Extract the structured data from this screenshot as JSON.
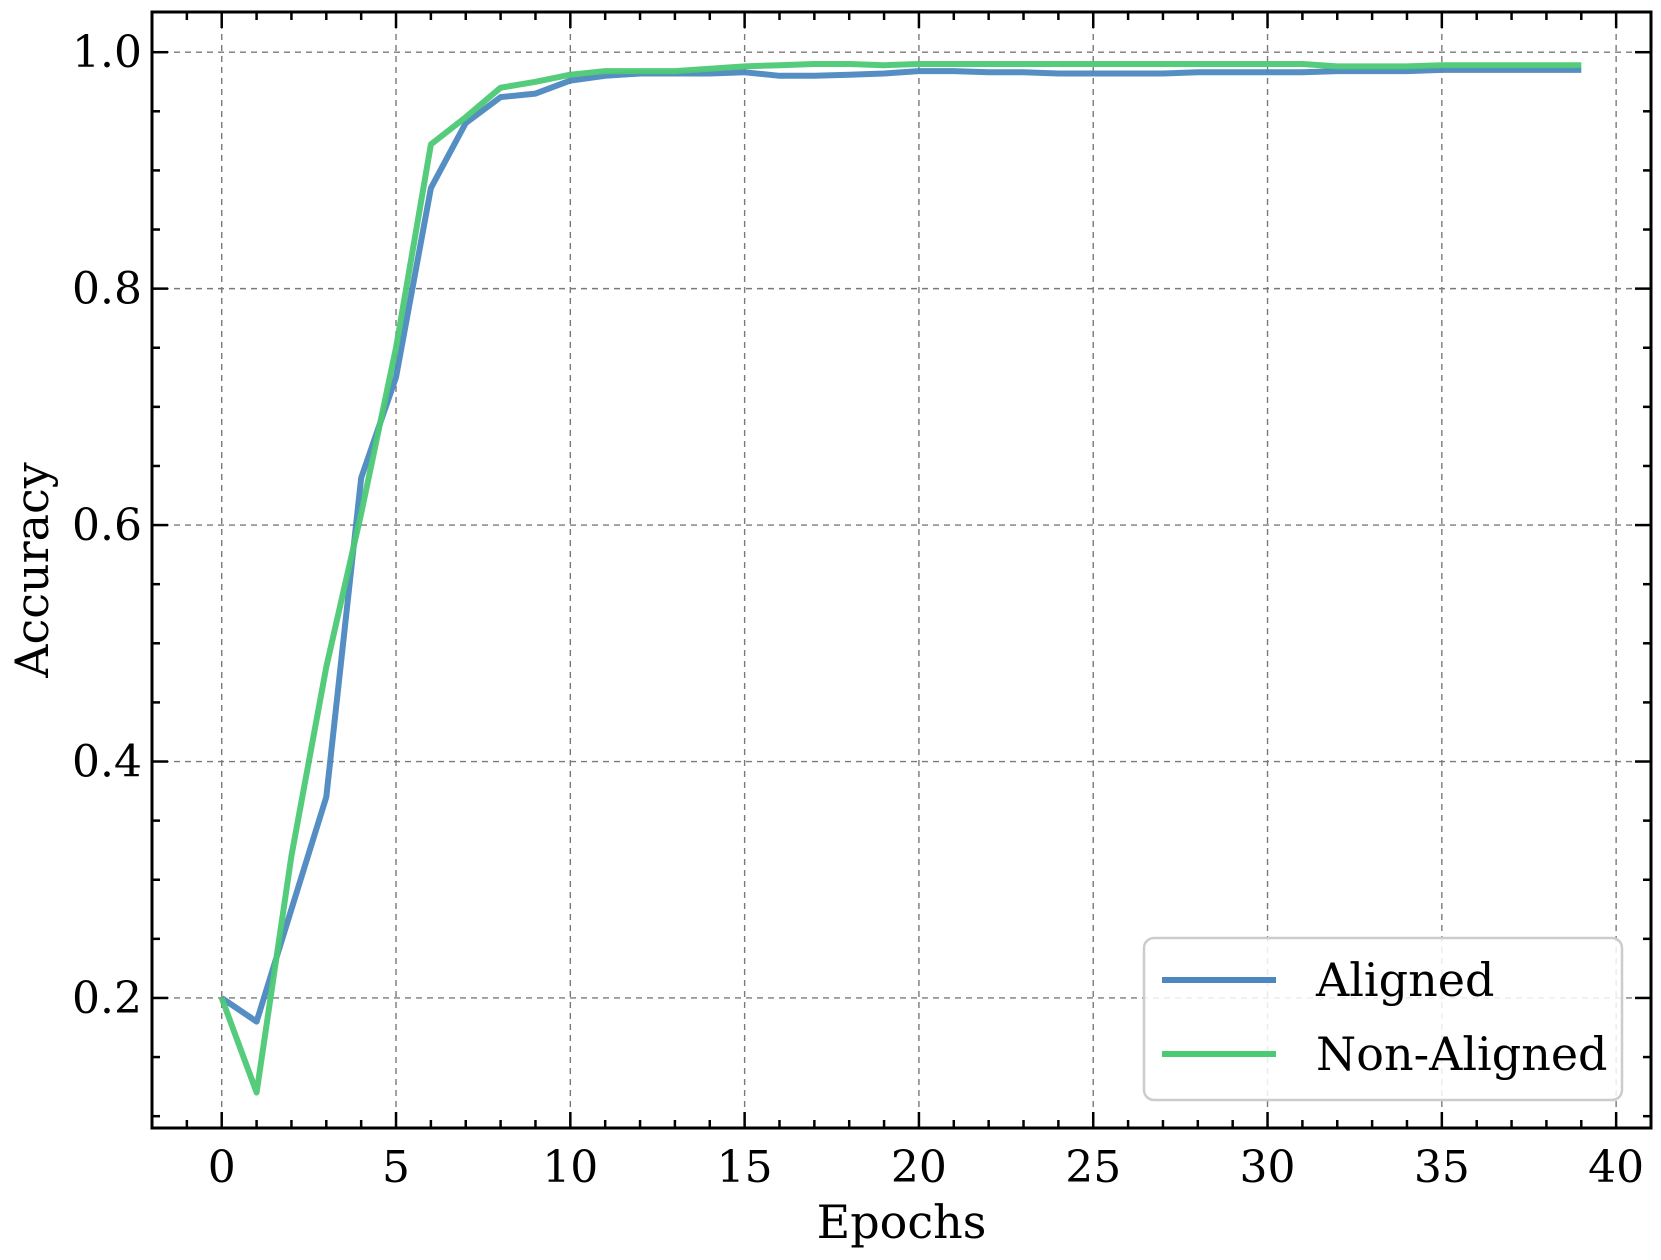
{
  "chart_data": {
    "type": "line",
    "title": "",
    "xlabel": "Epochs",
    "ylabel": "Accuracy",
    "xlim": [
      -2,
      41
    ],
    "ylim": [
      0.09,
      1.034
    ],
    "xticks": [
      0,
      5,
      10,
      15,
      20,
      25,
      30,
      35,
      40
    ],
    "xtick_labels": [
      "0",
      "5",
      "10",
      "15",
      "20",
      "25",
      "30",
      "35",
      "40"
    ],
    "yticks": [
      0.2,
      0.4,
      0.6,
      0.8,
      1.0
    ],
    "ytick_labels": [
      "0.2",
      "0.4",
      "0.6",
      "0.8",
      "1.0"
    ],
    "grid": true,
    "legend_position": "bottom-right",
    "x": [
      0,
      1,
      2,
      3,
      4,
      5,
      6,
      7,
      8,
      9,
      10,
      11,
      12,
      13,
      14,
      15,
      16,
      17,
      18,
      19,
      20,
      21,
      22,
      23,
      24,
      25,
      26,
      27,
      28,
      29,
      30,
      31,
      32,
      33,
      34,
      35,
      36,
      37,
      38,
      39
    ],
    "series": [
      {
        "name": "Aligned",
        "color": "#4C88BF",
        "values": [
          0.2,
          0.18,
          0.275,
          0.37,
          0.64,
          0.725,
          0.885,
          0.94,
          0.962,
          0.965,
          0.976,
          0.98,
          0.982,
          0.982,
          0.982,
          0.983,
          0.98,
          0.98,
          0.981,
          0.982,
          0.984,
          0.984,
          0.983,
          0.983,
          0.982,
          0.982,
          0.982,
          0.982,
          0.983,
          0.983,
          0.983,
          0.983,
          0.984,
          0.984,
          0.984,
          0.985,
          0.985,
          0.985,
          0.985,
          0.985
        ]
      },
      {
        "name": "Non-Aligned",
        "color": "#4CC975",
        "values": [
          0.2,
          0.12,
          0.32,
          0.48,
          0.61,
          0.75,
          0.922,
          0.945,
          0.97,
          0.975,
          0.981,
          0.984,
          0.984,
          0.984,
          0.986,
          0.988,
          0.989,
          0.99,
          0.99,
          0.989,
          0.99,
          0.99,
          0.99,
          0.99,
          0.99,
          0.99,
          0.99,
          0.99,
          0.99,
          0.99,
          0.99,
          0.99,
          0.988,
          0.988,
          0.988,
          0.989,
          0.989,
          0.989,
          0.989,
          0.989
        ]
      }
    ]
  }
}
